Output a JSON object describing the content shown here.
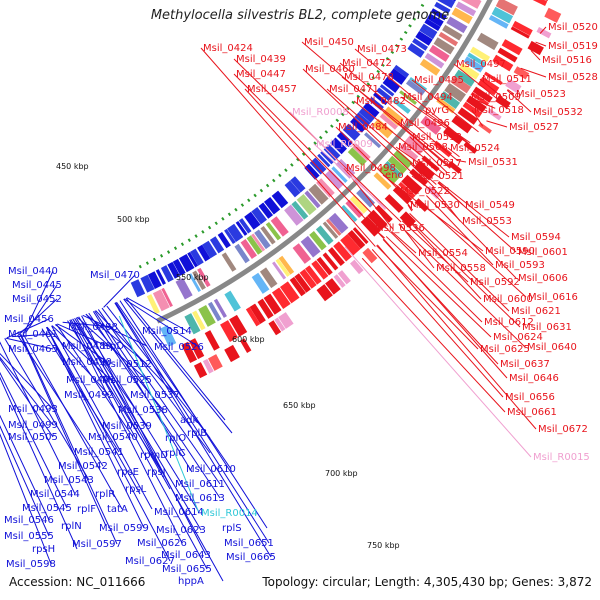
{
  "title": "Methylocella silvestris BL2, complete genome",
  "footer": {
    "accession": "Accession: NC_011666",
    "summary": "Topology: circular; Length: 4,305,430 bp; Genes: 3,872"
  },
  "colors": {
    "forward": "#e8141c",
    "reverse": "#1010d8",
    "rna": "#f0a0d0",
    "cyan": "#30c8d8",
    "backbone": "#888888",
    "tick": "#2a9a2a"
  },
  "scale_labels": [
    "450 kbp",
    "500 kbp",
    "550 kbp",
    "600 kbp",
    "650 kbp",
    "700 kbp",
    "750 kbp"
  ],
  "labels_red": [
    "Msil_0424",
    "Msil_0450",
    "Msil_0439",
    "Msil_0473",
    "Msil_0447",
    "Msil_0460",
    "Msil_0472",
    "Msil_0457",
    "Msil_0478",
    "Msil_0471",
    "Msil_0482",
    "Msil_0484",
    "Msil_0497",
    "Msil_0495",
    "Msil_0511",
    "Msil_0494",
    "Msil_0509",
    "Msil_0496",
    "Msil_0518",
    "Msil_0508",
    "Msil_0513",
    "Msil_0524",
    "Msil_0498",
    "Msil_0517",
    "eno",
    "Msil_0521",
    "Msil_0522",
    "Msil_0530",
    "Msil_0536",
    "Msil_0549",
    "Msil_0553",
    "Msil_0554",
    "Msil_0558",
    "Msil_0520",
    "Msil_0519",
    "Msil_0516",
    "Msil_0528",
    "Msil_0523",
    "Msil_0532",
    "Msil_0527",
    "Msil_0531",
    "pyrG",
    "Msil_0594",
    "Msil_0590",
    "Msil_0593",
    "Msil_0592",
    "Msil_0601",
    "Msil_0606",
    "Msil_0600",
    "Msil_0616",
    "Msil_0621",
    "Msil_0612",
    "Msil_0624",
    "Msil_0625",
    "Msil_0631",
    "Msil_0640",
    "Msil_0637",
    "Msil_0646",
    "Msil_0656",
    "Msil_0661",
    "Msil_0672"
  ],
  "labels_pink": [
    "Msil_R0008",
    "Msil_R0009",
    "Msil_R0015"
  ],
  "labels_blue": [
    "Msil_0440",
    "Msil_0445",
    "Msil_0452",
    "Msil_0470",
    "Msil_0456",
    "Msil_0461",
    "Msil_0465",
    "Msil_0488",
    "Msil_0489",
    "Msil_0490",
    "Msil_0491",
    "Msil_0492",
    "Msil_0493",
    "Msil_0499",
    "Msil_0505",
    "trpD",
    "Msil_0512",
    "Msil_0514",
    "Msil_0526",
    "Msil_0525",
    "Msil_0537",
    "Msil_0538",
    "Msil_0539",
    "Msil_0540",
    "Msil_0541",
    "Msil_0542",
    "Msil_0543",
    "Msil_0544",
    "Msil_0545",
    "Msil_0546",
    "Msil_0555",
    "rpsH",
    "Msil_0598",
    "adk",
    "rplO",
    "rplB",
    "rpmD",
    "rplC",
    "rpsE",
    "rpsJ",
    "rplR",
    "rpsL",
    "rplF",
    "rplN",
    "Msil_0597",
    "tatA",
    "Msil_0599",
    "Msil_0610",
    "Msil_0611",
    "Msil_0613",
    "Msil_0614",
    "Msil_0623",
    "Msil_0626",
    "Msil_0627",
    "rplS",
    "Msil_0651",
    "Msil_0643",
    "Msil_0655",
    "Msil_0665",
    "hppA"
  ],
  "labels_cyan": [
    "Msil_R0014"
  ]
}
